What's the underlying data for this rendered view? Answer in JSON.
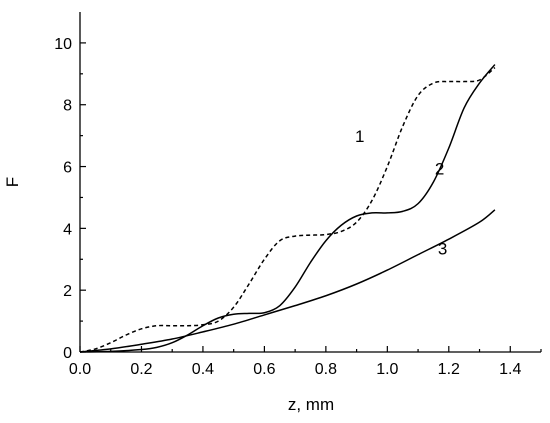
{
  "chart_data": {
    "type": "line",
    "title": "",
    "xlabel": "z, mm",
    "ylabel": "F",
    "xlim": [
      0.0,
      1.5
    ],
    "ylim": [
      0,
      11
    ],
    "xticks": [
      "0.0",
      "0.2",
      "0.4",
      "0.6",
      "0.8",
      "1.0",
      "1.2",
      "1.4"
    ],
    "xtick_values": [
      0.0,
      0.2,
      0.4,
      0.6,
      0.8,
      1.0,
      1.2,
      1.4
    ],
    "yticks": [
      "0",
      "2",
      "4",
      "6",
      "8",
      "10"
    ],
    "ytick_values": [
      0,
      2,
      4,
      6,
      8,
      10
    ],
    "grid": false,
    "legend": "none",
    "series": [
      {
        "name": "1",
        "style": "dashed",
        "x": [
          0.0,
          0.05,
          0.1,
          0.15,
          0.2,
          0.25,
          0.3,
          0.35,
          0.4,
          0.45,
          0.5,
          0.55,
          0.6,
          0.65,
          0.7,
          0.75,
          0.8,
          0.85,
          0.9,
          0.95,
          1.0,
          1.05,
          1.1,
          1.15,
          1.2,
          1.25,
          1.3,
          1.35
        ],
        "y": [
          0.0,
          0.1,
          0.3,
          0.55,
          0.75,
          0.85,
          0.85,
          0.85,
          0.88,
          1.0,
          1.45,
          2.2,
          3.0,
          3.6,
          3.75,
          3.78,
          3.8,
          3.9,
          4.2,
          4.9,
          6.0,
          7.3,
          8.3,
          8.7,
          8.75,
          8.75,
          8.8,
          9.2
        ]
      },
      {
        "name": "2",
        "style": "solid",
        "x": [
          0.0,
          0.1,
          0.2,
          0.25,
          0.3,
          0.35,
          0.4,
          0.45,
          0.5,
          0.55,
          0.6,
          0.65,
          0.7,
          0.75,
          0.8,
          0.85,
          0.9,
          0.95,
          1.0,
          1.05,
          1.1,
          1.15,
          1.2,
          1.25,
          1.3,
          1.35
        ],
        "y": [
          0.0,
          0.02,
          0.08,
          0.15,
          0.3,
          0.55,
          0.85,
          1.1,
          1.22,
          1.25,
          1.27,
          1.5,
          2.1,
          2.9,
          3.6,
          4.1,
          4.4,
          4.5,
          4.5,
          4.55,
          4.8,
          5.5,
          6.6,
          7.9,
          8.7,
          9.3
        ]
      },
      {
        "name": "3",
        "style": "solid",
        "x": [
          0.0,
          0.1,
          0.2,
          0.3,
          0.4,
          0.5,
          0.6,
          0.7,
          0.8,
          0.9,
          1.0,
          1.1,
          1.2,
          1.3,
          1.35
        ],
        "y": [
          0.0,
          0.1,
          0.25,
          0.42,
          0.65,
          0.9,
          1.2,
          1.5,
          1.82,
          2.2,
          2.65,
          3.15,
          3.65,
          4.2,
          4.6
        ]
      }
    ],
    "annotations": [
      {
        "text": "1",
        "x": 0.91,
        "y": 6.8
      },
      {
        "text": "2",
        "x": 1.17,
        "y": 5.75
      },
      {
        "text": "3",
        "x": 1.18,
        "y": 3.15
      }
    ]
  }
}
